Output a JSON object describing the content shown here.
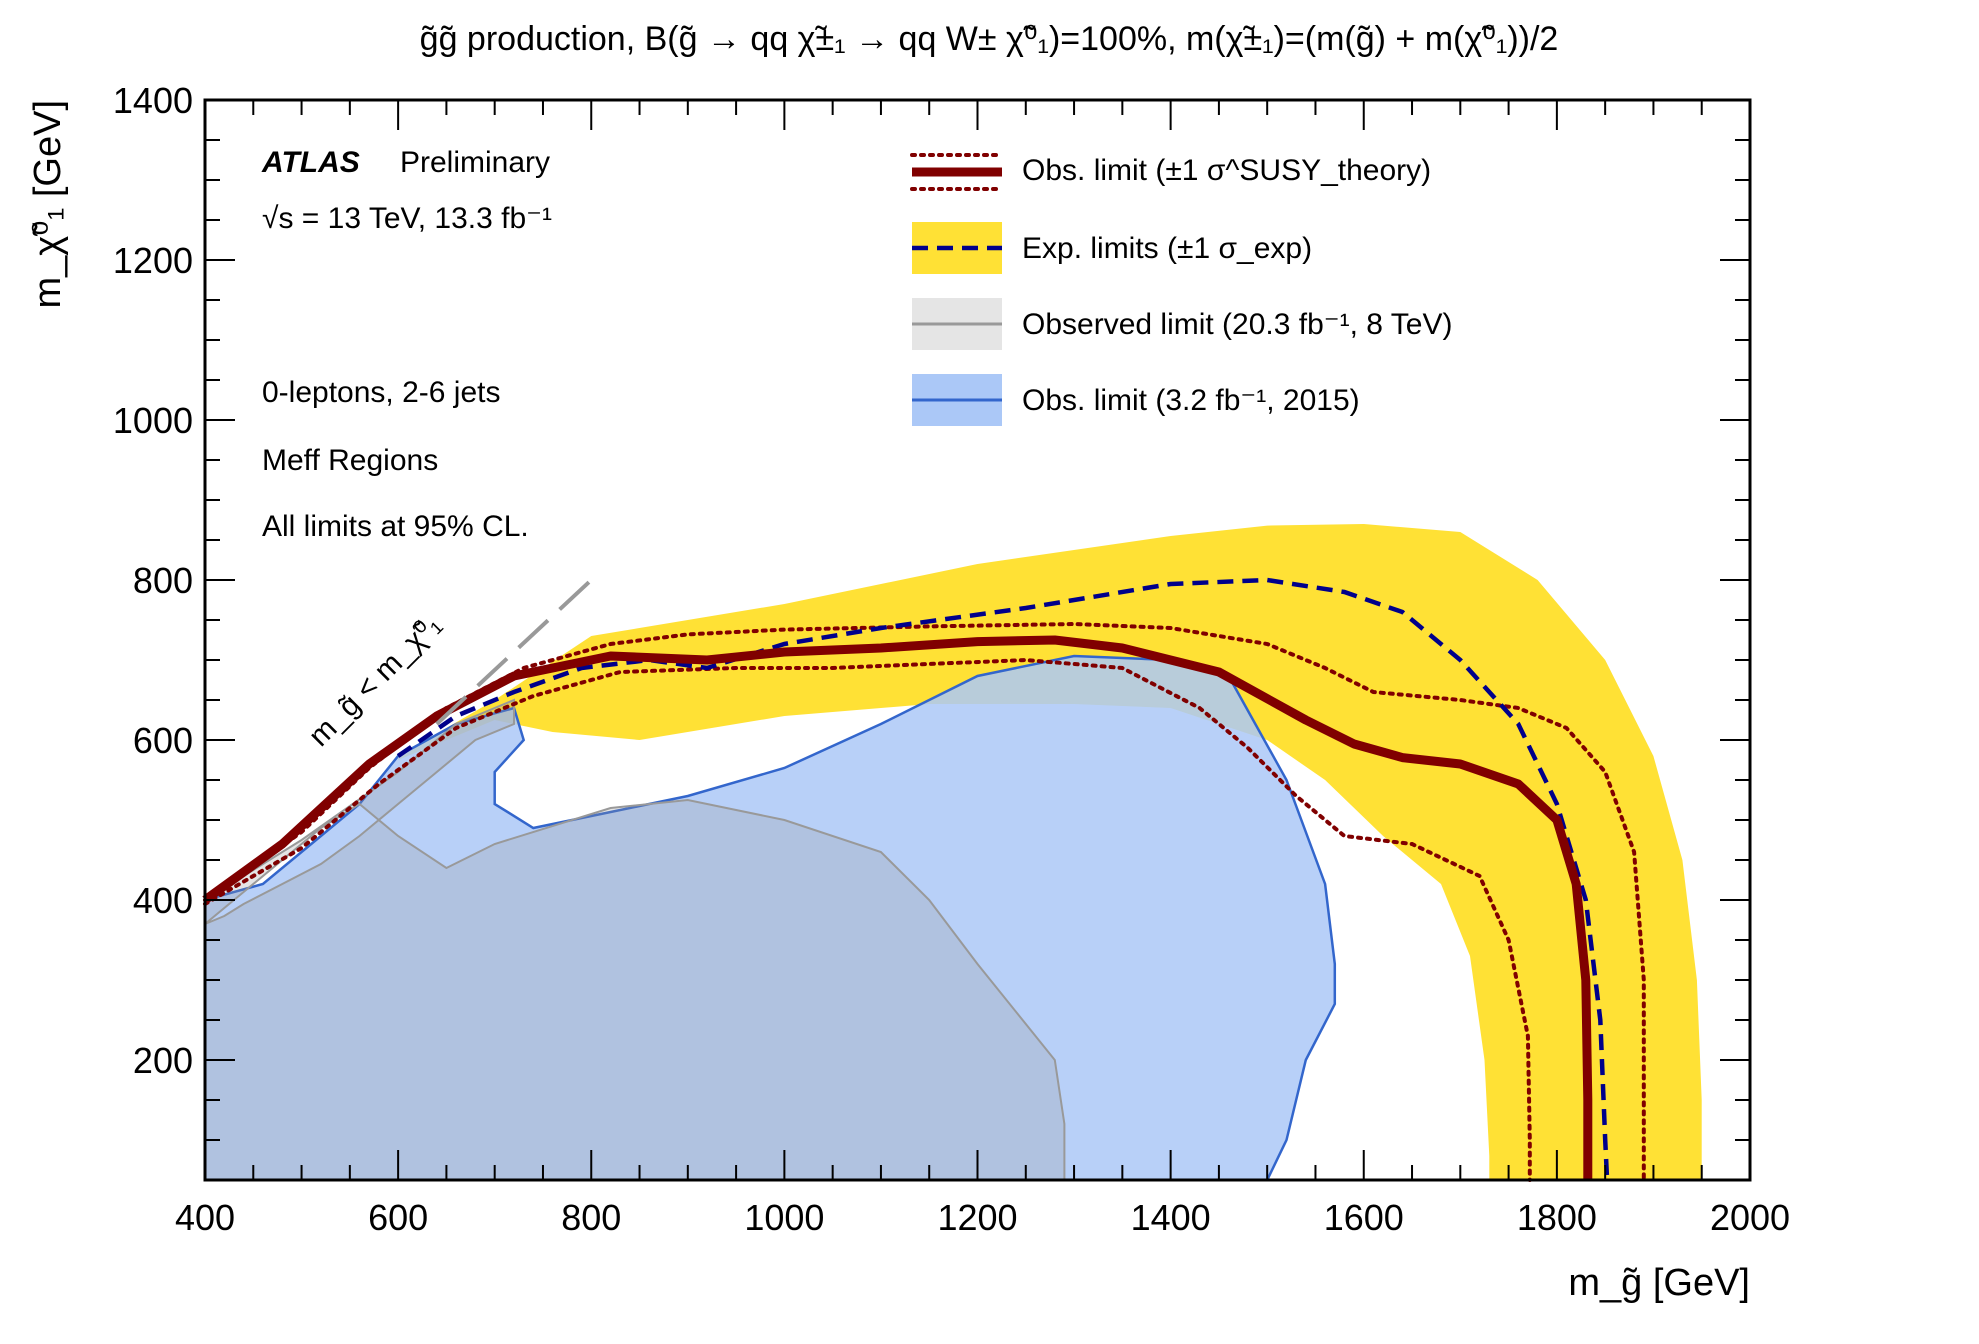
{
  "chart_data": {
    "type": "line",
    "title": "g̃g̃ production, B(g̃ → qq χ̃±₁ → qq W± χ̃⁰₁)=100%, m(χ̃±₁)=(m(g̃) + m(χ̃⁰₁))/2",
    "xlabel": "m_g̃ [GeV]",
    "ylabel": "m_χ̃⁰₁ [GeV]",
    "xlim": [
      400,
      2000
    ],
    "ylim": [
      50,
      1400
    ],
    "xticks": [
      400,
      600,
      800,
      1000,
      1200,
      1400,
      1600,
      1800,
      2000
    ],
    "yticks": [
      200,
      400,
      600,
      800,
      1000,
      1200,
      1400
    ],
    "grid": false,
    "legend_position": "top-center",
    "annotations": {
      "atlas": "ATLAS",
      "preliminary": "Preliminary",
      "energy": "√s = 13 TeV, 13.3 fb⁻¹",
      "line1": "0-leptons, 2-6 jets",
      "line2": "Meff Regions",
      "line3": "All limits at 95% CL.",
      "diagonal": "m_g̃ < m_χ̃⁰₁"
    },
    "legend": [
      {
        "key": "obs",
        "label": "Obs. limit (±1 σ^SUSY_theory)"
      },
      {
        "key": "exp",
        "label": "Exp. limits (±1 σ_exp)"
      },
      {
        "key": "obs8",
        "label": "Observed limit (20.3 fb⁻¹, 8 TeV)"
      },
      {
        "key": "obs2015",
        "label": "Obs. limit (3.2 fb⁻¹, 2015)"
      }
    ],
    "colors": {
      "observed": "#800000",
      "expected": "#00008b",
      "expected_band": "#ffe135",
      "run1_fill": "#e5e5e5",
      "run1_line": "#999999",
      "limit2015_fill": "#abc8f7",
      "limit2015_line": "#3366cc",
      "diagonal": "#999999"
    },
    "series": [
      {
        "name": "Observed limit",
        "style": "thick-solid",
        "points": [
          [
            400,
            400
          ],
          [
            480,
            470
          ],
          [
            570,
            570
          ],
          [
            640,
            630
          ],
          [
            720,
            680
          ],
          [
            820,
            705
          ],
          [
            920,
            700
          ],
          [
            1000,
            710
          ],
          [
            1100,
            715
          ],
          [
            1200,
            723
          ],
          [
            1280,
            725
          ],
          [
            1350,
            715
          ],
          [
            1450,
            685
          ],
          [
            1540,
            625
          ],
          [
            1590,
            595
          ],
          [
            1640,
            578
          ],
          [
            1700,
            570
          ],
          [
            1760,
            545
          ],
          [
            1800,
            500
          ],
          [
            1820,
            420
          ],
          [
            1830,
            300
          ],
          [
            1832,
            150
          ],
          [
            1832,
            50
          ]
        ]
      },
      {
        "name": "Observed +1σ theory",
        "style": "dotted",
        "points": [
          [
            400,
            400
          ],
          [
            500,
            485
          ],
          [
            570,
            565
          ],
          [
            650,
            640
          ],
          [
            730,
            690
          ],
          [
            820,
            720
          ],
          [
            900,
            732
          ],
          [
            1000,
            738
          ],
          [
            1150,
            742
          ],
          [
            1300,
            745
          ],
          [
            1400,
            740
          ],
          [
            1500,
            720
          ],
          [
            1560,
            690
          ],
          [
            1610,
            660
          ],
          [
            1700,
            650
          ],
          [
            1760,
            640
          ],
          [
            1810,
            615
          ],
          [
            1850,
            560
          ],
          [
            1880,
            460
          ],
          [
            1890,
            300
          ],
          [
            1890,
            150
          ],
          [
            1890,
            50
          ]
        ]
      },
      {
        "name": "Observed -1σ theory",
        "style": "dotted",
        "points": [
          [
            400,
            395
          ],
          [
            500,
            465
          ],
          [
            580,
            545
          ],
          [
            660,
            615
          ],
          [
            740,
            655
          ],
          [
            830,
            685
          ],
          [
            950,
            690
          ],
          [
            1050,
            690
          ],
          [
            1150,
            695
          ],
          [
            1250,
            700
          ],
          [
            1350,
            690
          ],
          [
            1430,
            640
          ],
          [
            1480,
            590
          ],
          [
            1530,
            530
          ],
          [
            1580,
            480
          ],
          [
            1650,
            470
          ],
          [
            1720,
            430
          ],
          [
            1750,
            350
          ],
          [
            1770,
            230
          ],
          [
            1772,
            100
          ],
          [
            1772,
            50
          ]
        ]
      },
      {
        "name": "Expected limit",
        "style": "dashed",
        "points": [
          [
            600,
            580
          ],
          [
            660,
            630
          ],
          [
            720,
            660
          ],
          [
            790,
            690
          ],
          [
            860,
            700
          ],
          [
            920,
            690
          ],
          [
            1000,
            720
          ],
          [
            1100,
            740
          ],
          [
            1250,
            765
          ],
          [
            1400,
            795
          ],
          [
            1500,
            800
          ],
          [
            1580,
            785
          ],
          [
            1640,
            760
          ],
          [
            1700,
            700
          ],
          [
            1760,
            620
          ],
          [
            1800,
            520
          ],
          [
            1830,
            400
          ],
          [
            1845,
            250
          ],
          [
            1850,
            100
          ],
          [
            1852,
            50
          ]
        ]
      },
      {
        "name": "Expected ±1σ band",
        "style": "band",
        "upper": [
          [
            600,
            580
          ],
          [
            700,
            650
          ],
          [
            800,
            730
          ],
          [
            1000,
            770
          ],
          [
            1200,
            820
          ],
          [
            1400,
            855
          ],
          [
            1500,
            868
          ],
          [
            1600,
            870
          ],
          [
            1700,
            860
          ],
          [
            1780,
            800
          ],
          [
            1850,
            700
          ],
          [
            1900,
            580
          ],
          [
            1930,
            450
          ],
          [
            1945,
            300
          ],
          [
            1950,
            150
          ],
          [
            1950,
            50
          ]
        ],
        "lower": [
          [
            600,
            575
          ],
          [
            700,
            625
          ],
          [
            760,
            610
          ],
          [
            850,
            600
          ],
          [
            1000,
            630
          ],
          [
            1150,
            645
          ],
          [
            1300,
            645
          ],
          [
            1400,
            640
          ],
          [
            1500,
            600
          ],
          [
            1560,
            550
          ],
          [
            1620,
            480
          ],
          [
            1680,
            420
          ],
          [
            1710,
            330
          ],
          [
            1725,
            200
          ],
          [
            1730,
            80
          ],
          [
            1730,
            50
          ]
        ]
      },
      {
        "name": "Observed limit (20.3 fb⁻¹, 8 TeV)",
        "style": "filled-grey",
        "points": [
          [
            400,
            50
          ],
          [
            400,
            400
          ],
          [
            500,
            475
          ],
          [
            600,
            560
          ],
          [
            660,
            620
          ],
          [
            720,
            650
          ],
          [
            720,
            620
          ],
          [
            680,
            600
          ],
          [
            640,
            560
          ],
          [
            600,
            520
          ],
          [
            560,
            480
          ],
          [
            520,
            445
          ],
          [
            480,
            420
          ],
          [
            440,
            395
          ],
          [
            420,
            380
          ],
          [
            400,
            370
          ],
          [
            400,
            50
          ],
          [
            1290,
            50
          ],
          [
            1290,
            120
          ],
          [
            1280,
            200
          ],
          [
            1200,
            320
          ],
          [
            1150,
            400
          ],
          [
            1100,
            460
          ],
          [
            1000,
            500
          ],
          [
            900,
            525
          ],
          [
            820,
            515
          ],
          [
            700,
            470
          ],
          [
            650,
            440
          ],
          [
            600,
            480
          ],
          [
            560,
            520
          ],
          [
            520,
            490
          ],
          [
            480,
            450
          ],
          [
            440,
            410
          ],
          [
            400,
            370
          ]
        ]
      },
      {
        "name": "Obs. limit (3.2 fb⁻¹, 2015)",
        "style": "filled-blue",
        "points": [
          [
            400,
            50
          ],
          [
            400,
            400
          ],
          [
            460,
            420
          ],
          [
            520,
            480
          ],
          [
            560,
            520
          ],
          [
            600,
            580
          ],
          [
            660,
            620
          ],
          [
            720,
            640
          ],
          [
            730,
            600
          ],
          [
            700,
            560
          ],
          [
            700,
            520
          ],
          [
            740,
            490
          ],
          [
            820,
            510
          ],
          [
            900,
            530
          ],
          [
            1000,
            565
          ],
          [
            1100,
            620
          ],
          [
            1200,
            680
          ],
          [
            1300,
            705
          ],
          [
            1400,
            700
          ],
          [
            1460,
            680
          ],
          [
            1520,
            550
          ],
          [
            1560,
            420
          ],
          [
            1570,
            320
          ],
          [
            1570,
            270
          ],
          [
            1540,
            200
          ],
          [
            1520,
            100
          ],
          [
            1500,
            50
          ]
        ]
      }
    ]
  }
}
